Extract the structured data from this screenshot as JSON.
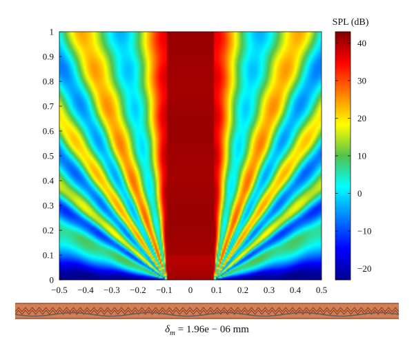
{
  "chart_data": {
    "type": "heatmap",
    "title": "",
    "xlabel": "",
    "ylabel": "",
    "xlim": [
      -0.5,
      0.5
    ],
    "ylim": [
      0,
      1
    ],
    "x_ticks": [
      "-0.5",
      "-0.4",
      "-0.3",
      "-0.2",
      "-0.1",
      "0",
      "0.1",
      "0.2",
      "0.3",
      "0.4",
      "0.5"
    ],
    "y_ticks": [
      "0",
      "0.1",
      "0.2",
      "0.3",
      "0.4",
      "0.5",
      "0.6",
      "0.7",
      "0.8",
      "0.9",
      "1"
    ],
    "colorbar": {
      "label": "SPL (dB)",
      "range": [
        -23,
        43
      ],
      "ticks": [
        "40",
        "30",
        "20",
        "10",
        "0",
        "-10",
        "-20"
      ],
      "colormap": "jet"
    },
    "field": {
      "description_key": "beam pattern",
      "main_lobe_peak_db": 41,
      "lobe_directions_deg": [
        0,
        18,
        32,
        47,
        63
      ],
      "null_directions_deg": [
        10,
        25,
        39,
        54
      ],
      "lobe_levels_db": [
        41,
        29,
        25,
        19,
        10
      ]
    },
    "array_strip": {
      "colors": {
        "fill": "#c8693a",
        "stroke": "#8c3a1e",
        "ribbon": "#5e5e5e"
      }
    },
    "caption": {
      "symbol": "δ",
      "subscript": "m",
      "rest": " = 1.96e − 06 mm"
    },
    "colors": {
      "axis": "#111111",
      "background": "#ffffff"
    }
  }
}
